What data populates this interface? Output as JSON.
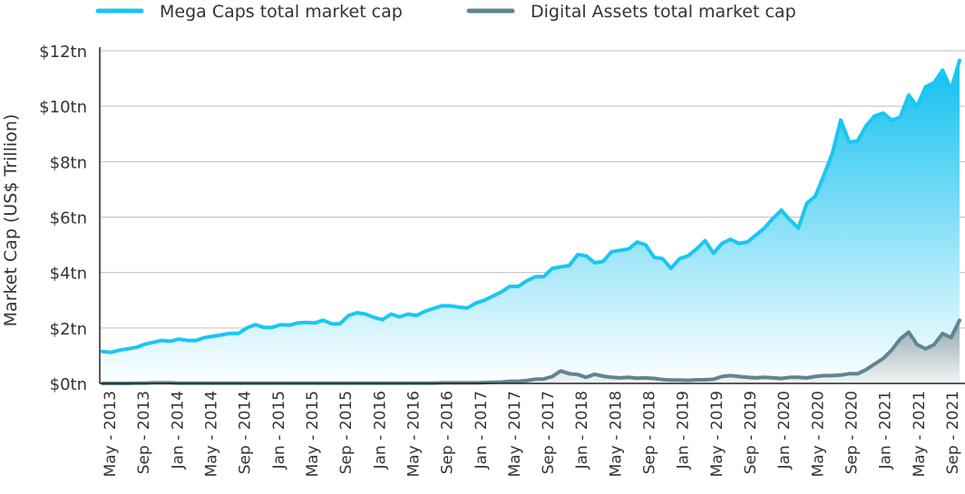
{
  "chart_data": {
    "type": "area",
    "ylabel": "Market Cap (US$ Trillion)",
    "xlabel": "",
    "ylim": [
      0,
      12
    ],
    "y_ticks": [
      "$0tn",
      "$2tn",
      "$4tn",
      "$6tn",
      "$8tn",
      "$10tn",
      "$12tn"
    ],
    "y_tick_values": [
      0,
      2,
      4,
      6,
      8,
      10,
      12
    ],
    "x_ticks": [
      "May - 2013",
      "Sep - 2013",
      "Jan - 2014",
      "May - 2014",
      "Sep - 2014",
      "Jan - 2015",
      "May - 2015",
      "Sep - 2015",
      "Jan - 2016",
      "May - 2016",
      "Sep - 2016",
      "Jan - 2017",
      "May - 2017",
      "Sep - 2017",
      "Jan - 2018",
      "May - 2018",
      "Sep - 2018",
      "Jan - 2019",
      "May - 2019",
      "Sep - 2019",
      "Jan - 2020",
      "May - 2020",
      "Sep - 2020",
      "Jan - 2021",
      "May - 2021",
      "Sep - 2021"
    ],
    "grid": true,
    "legend_position": "top",
    "series": [
      {
        "name": "Mega Caps total market cap",
        "color": "#1ac6f2",
        "values": [
          1.15,
          1.12,
          1.2,
          1.25,
          1.3,
          1.42,
          1.48,
          1.55,
          1.52,
          1.6,
          1.55,
          1.55,
          1.65,
          1.7,
          1.75,
          1.8,
          1.8,
          2.0,
          2.12,
          2.02,
          2.02,
          2.12,
          2.1,
          2.18,
          2.2,
          2.18,
          2.28,
          2.15,
          2.15,
          2.45,
          2.55,
          2.5,
          2.38,
          2.3,
          2.5,
          2.4,
          2.5,
          2.45,
          2.6,
          2.7,
          2.8,
          2.8,
          2.75,
          2.72,
          2.9,
          3.0,
          3.15,
          3.3,
          3.5,
          3.5,
          3.7,
          3.85,
          3.85,
          4.15,
          4.2,
          4.25,
          4.65,
          4.6,
          4.35,
          4.4,
          4.75,
          4.8,
          4.85,
          5.1,
          5.0,
          4.55,
          4.5,
          4.15,
          4.5,
          4.6,
          4.85,
          5.15,
          4.7,
          5.05,
          5.2,
          5.05,
          5.1,
          5.35,
          5.6,
          5.95,
          6.25,
          5.9,
          5.6,
          6.5,
          6.75,
          7.5,
          8.3,
          9.5,
          8.7,
          8.75,
          9.3,
          9.65,
          9.75,
          9.5,
          9.6,
          10.4,
          10.0,
          10.7,
          10.85,
          11.3,
          10.6,
          11.65
        ]
      },
      {
        "name": "Digital Assets total market cap",
        "color": "#5f8590",
        "values": [
          0.0,
          0.0,
          0.0,
          0.0,
          0.01,
          0.01,
          0.02,
          0.02,
          0.02,
          0.01,
          0.01,
          0.01,
          0.01,
          0.01,
          0.01,
          0.01,
          0.01,
          0.01,
          0.01,
          0.01,
          0.01,
          0.01,
          0.01,
          0.01,
          0.01,
          0.01,
          0.01,
          0.01,
          0.01,
          0.01,
          0.01,
          0.01,
          0.01,
          0.01,
          0.01,
          0.01,
          0.01,
          0.01,
          0.01,
          0.01,
          0.02,
          0.02,
          0.02,
          0.02,
          0.02,
          0.03,
          0.04,
          0.05,
          0.08,
          0.08,
          0.1,
          0.15,
          0.16,
          0.25,
          0.45,
          0.35,
          0.32,
          0.22,
          0.33,
          0.26,
          0.22,
          0.2,
          0.22,
          0.19,
          0.2,
          0.18,
          0.14,
          0.12,
          0.12,
          0.11,
          0.13,
          0.13,
          0.15,
          0.25,
          0.28,
          0.25,
          0.22,
          0.2,
          0.22,
          0.2,
          0.18,
          0.22,
          0.22,
          0.2,
          0.25,
          0.28,
          0.28,
          0.3,
          0.35,
          0.35,
          0.5,
          0.7,
          0.9,
          1.2,
          1.6,
          1.85,
          1.4,
          1.25,
          1.4,
          1.8,
          1.65,
          2.28
        ]
      }
    ]
  }
}
